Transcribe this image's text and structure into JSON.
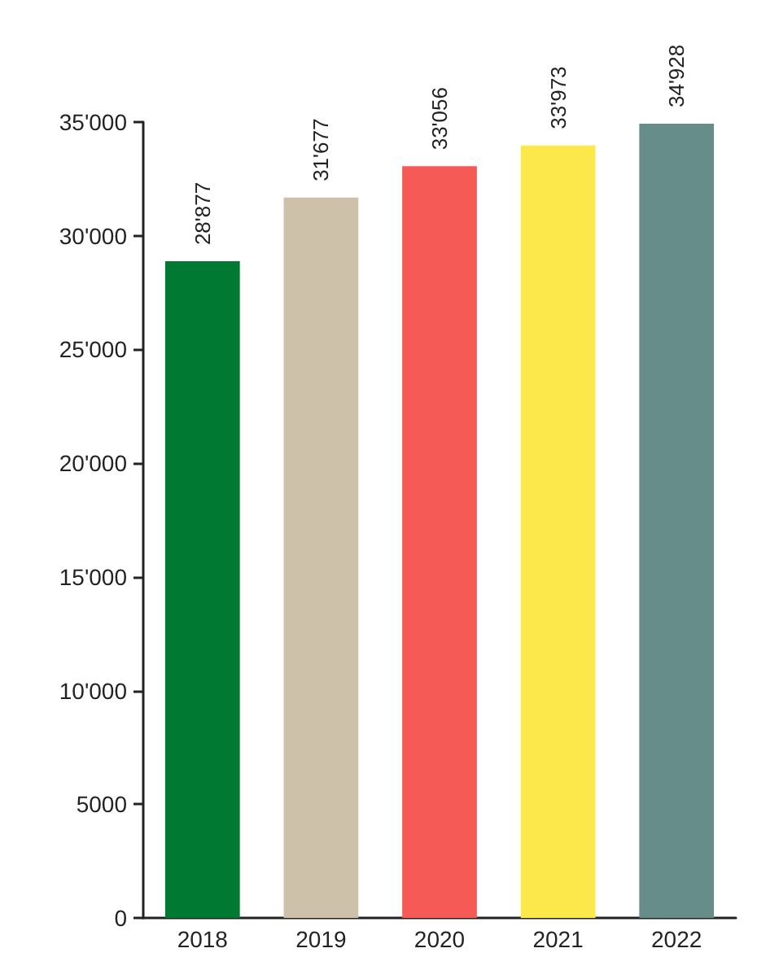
{
  "chart_data": {
    "type": "bar",
    "categories": [
      "2018",
      "2019",
      "2020",
      "2021",
      "2022"
    ],
    "values": [
      28877,
      31677,
      33056,
      33973,
      34928
    ],
    "colors": [
      "#007a33",
      "#cdc1a9",
      "#f55a56",
      "#fce84a",
      "#668d8a"
    ],
    "value_labels": [
      "28'877",
      "31'677",
      "33'056",
      "33'973",
      "34'928"
    ],
    "ylim": [
      0,
      35000
    ],
    "yticks": [
      0,
      5000,
      {
        "value": 10000,
        "label": "10'000"
      },
      {
        "value": 15000,
        "label": "15'000"
      },
      {
        "value": 20000,
        "label": "20'000"
      },
      {
        "value": 25000,
        "label": "25'000"
      },
      {
        "value": 30000,
        "label": "30'000"
      },
      {
        "value": 35000,
        "label": "35'000"
      }
    ],
    "grid": false
  }
}
